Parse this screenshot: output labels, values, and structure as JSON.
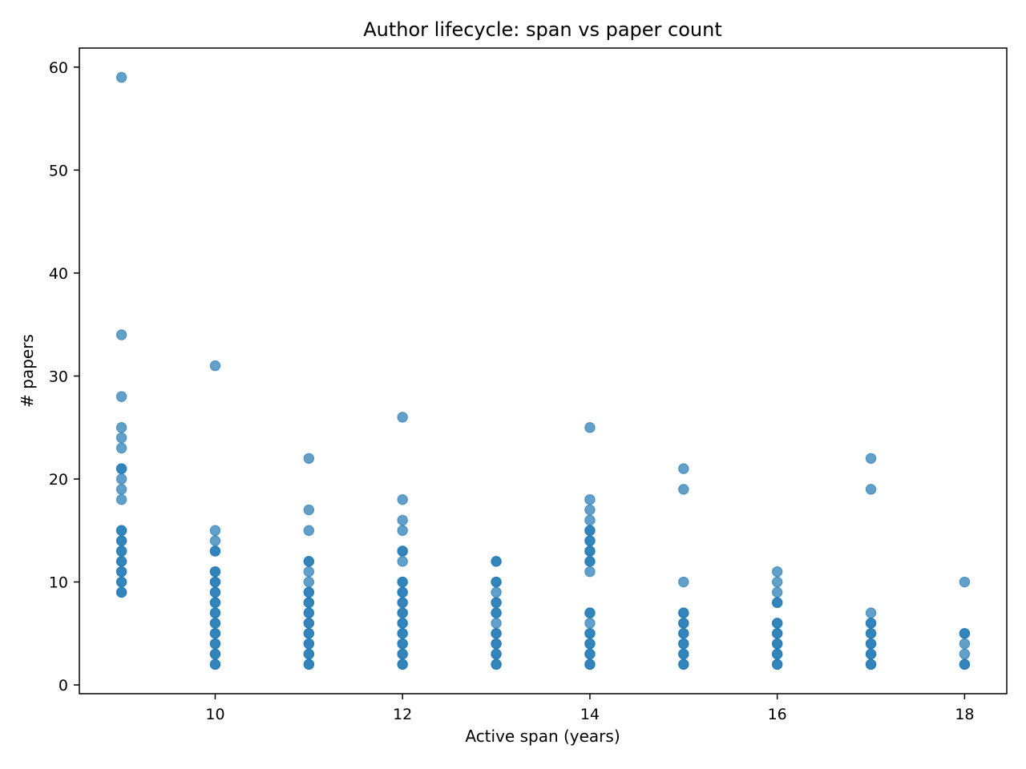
{
  "chart_data": {
    "type": "scatter",
    "title": "Author lifecycle: span vs paper count",
    "xlabel": "Active span (years)",
    "ylabel": "# papers",
    "xlim": [
      8.55,
      18.45
    ],
    "ylim": [
      -0.85,
      61.85
    ],
    "xticks": [
      10,
      12,
      14,
      16,
      18
    ],
    "yticks": [
      0,
      10,
      20,
      30,
      40,
      50,
      60
    ],
    "grid": false,
    "legend": false,
    "marker_color": "#1f77b4",
    "marker_alpha": 0.7,
    "series": [
      {
        "points": [
          {
            "x": 9,
            "y": 59
          },
          {
            "x": 9,
            "y": 34
          },
          {
            "x": 9,
            "y": 28
          },
          {
            "x": 9,
            "y": 25
          },
          {
            "x": 9,
            "y": 24
          },
          {
            "x": 9,
            "y": 23
          },
          {
            "x": 9,
            "y": 21
          },
          {
            "x": 9,
            "y": 21
          },
          {
            "x": 9,
            "y": 20
          },
          {
            "x": 9,
            "y": 19
          },
          {
            "x": 9,
            "y": 18
          },
          {
            "x": 9,
            "y": 15
          },
          {
            "x": 9,
            "y": 15
          },
          {
            "x": 9,
            "y": 14
          },
          {
            "x": 9,
            "y": 14
          },
          {
            "x": 9,
            "y": 13
          },
          {
            "x": 9,
            "y": 13
          },
          {
            "x": 9,
            "y": 12
          },
          {
            "x": 9,
            "y": 12
          },
          {
            "x": 9,
            "y": 11
          },
          {
            "x": 9,
            "y": 11
          },
          {
            "x": 9,
            "y": 10
          },
          {
            "x": 9,
            "y": 10
          },
          {
            "x": 9,
            "y": 9
          },
          {
            "x": 9,
            "y": 9
          },
          {
            "x": 10,
            "y": 31
          },
          {
            "x": 10,
            "y": 15
          },
          {
            "x": 10,
            "y": 14
          },
          {
            "x": 10,
            "y": 13
          },
          {
            "x": 10,
            "y": 13
          },
          {
            "x": 10,
            "y": 11
          },
          {
            "x": 10,
            "y": 11
          },
          {
            "x": 10,
            "y": 10
          },
          {
            "x": 10,
            "y": 10
          },
          {
            "x": 10,
            "y": 9
          },
          {
            "x": 10,
            "y": 9
          },
          {
            "x": 10,
            "y": 8
          },
          {
            "x": 10,
            "y": 8
          },
          {
            "x": 10,
            "y": 7
          },
          {
            "x": 10,
            "y": 7
          },
          {
            "x": 10,
            "y": 6
          },
          {
            "x": 10,
            "y": 6
          },
          {
            "x": 10,
            "y": 5
          },
          {
            "x": 10,
            "y": 5
          },
          {
            "x": 10,
            "y": 4
          },
          {
            "x": 10,
            "y": 4
          },
          {
            "x": 10,
            "y": 3
          },
          {
            "x": 10,
            "y": 3
          },
          {
            "x": 10,
            "y": 2
          },
          {
            "x": 10,
            "y": 2
          },
          {
            "x": 11,
            "y": 22
          },
          {
            "x": 11,
            "y": 17
          },
          {
            "x": 11,
            "y": 15
          },
          {
            "x": 11,
            "y": 12
          },
          {
            "x": 11,
            "y": 12
          },
          {
            "x": 11,
            "y": 11
          },
          {
            "x": 11,
            "y": 10
          },
          {
            "x": 11,
            "y": 9
          },
          {
            "x": 11,
            "y": 9
          },
          {
            "x": 11,
            "y": 8
          },
          {
            "x": 11,
            "y": 8
          },
          {
            "x": 11,
            "y": 7
          },
          {
            "x": 11,
            "y": 7
          },
          {
            "x": 11,
            "y": 6
          },
          {
            "x": 11,
            "y": 6
          },
          {
            "x": 11,
            "y": 5
          },
          {
            "x": 11,
            "y": 5
          },
          {
            "x": 11,
            "y": 4
          },
          {
            "x": 11,
            "y": 4
          },
          {
            "x": 11,
            "y": 3
          },
          {
            "x": 11,
            "y": 3
          },
          {
            "x": 11,
            "y": 2
          },
          {
            "x": 11,
            "y": 2
          },
          {
            "x": 12,
            "y": 26
          },
          {
            "x": 12,
            "y": 18
          },
          {
            "x": 12,
            "y": 16
          },
          {
            "x": 12,
            "y": 15
          },
          {
            "x": 12,
            "y": 13
          },
          {
            "x": 12,
            "y": 13
          },
          {
            "x": 12,
            "y": 12
          },
          {
            "x": 12,
            "y": 10
          },
          {
            "x": 12,
            "y": 10
          },
          {
            "x": 12,
            "y": 9
          },
          {
            "x": 12,
            "y": 9
          },
          {
            "x": 12,
            "y": 8
          },
          {
            "x": 12,
            "y": 8
          },
          {
            "x": 12,
            "y": 7
          },
          {
            "x": 12,
            "y": 7
          },
          {
            "x": 12,
            "y": 6
          },
          {
            "x": 12,
            "y": 6
          },
          {
            "x": 12,
            "y": 5
          },
          {
            "x": 12,
            "y": 5
          },
          {
            "x": 12,
            "y": 4
          },
          {
            "x": 12,
            "y": 4
          },
          {
            "x": 12,
            "y": 3
          },
          {
            "x": 12,
            "y": 3
          },
          {
            "x": 12,
            "y": 2
          },
          {
            "x": 12,
            "y": 2
          },
          {
            "x": 13,
            "y": 12
          },
          {
            "x": 13,
            "y": 12
          },
          {
            "x": 13,
            "y": 10
          },
          {
            "x": 13,
            "y": 10
          },
          {
            "x": 13,
            "y": 9
          },
          {
            "x": 13,
            "y": 8
          },
          {
            "x": 13,
            "y": 8
          },
          {
            "x": 13,
            "y": 7
          },
          {
            "x": 13,
            "y": 7
          },
          {
            "x": 13,
            "y": 6
          },
          {
            "x": 13,
            "y": 5
          },
          {
            "x": 13,
            "y": 5
          },
          {
            "x": 13,
            "y": 4
          },
          {
            "x": 13,
            "y": 4
          },
          {
            "x": 13,
            "y": 3
          },
          {
            "x": 13,
            "y": 3
          },
          {
            "x": 13,
            "y": 2
          },
          {
            "x": 13,
            "y": 2
          },
          {
            "x": 14,
            "y": 25
          },
          {
            "x": 14,
            "y": 18
          },
          {
            "x": 14,
            "y": 17
          },
          {
            "x": 14,
            "y": 16
          },
          {
            "x": 14,
            "y": 15
          },
          {
            "x": 14,
            "y": 15
          },
          {
            "x": 14,
            "y": 14
          },
          {
            "x": 14,
            "y": 14
          },
          {
            "x": 14,
            "y": 13
          },
          {
            "x": 14,
            "y": 13
          },
          {
            "x": 14,
            "y": 12
          },
          {
            "x": 14,
            "y": 12
          },
          {
            "x": 14,
            "y": 11
          },
          {
            "x": 14,
            "y": 7
          },
          {
            "x": 14,
            "y": 7
          },
          {
            "x": 14,
            "y": 6
          },
          {
            "x": 14,
            "y": 5
          },
          {
            "x": 14,
            "y": 5
          },
          {
            "x": 14,
            "y": 4
          },
          {
            "x": 14,
            "y": 4
          },
          {
            "x": 14,
            "y": 3
          },
          {
            "x": 14,
            "y": 3
          },
          {
            "x": 14,
            "y": 2
          },
          {
            "x": 14,
            "y": 2
          },
          {
            "x": 15,
            "y": 21
          },
          {
            "x": 15,
            "y": 19
          },
          {
            "x": 15,
            "y": 10
          },
          {
            "x": 15,
            "y": 7
          },
          {
            "x": 15,
            "y": 7
          },
          {
            "x": 15,
            "y": 6
          },
          {
            "x": 15,
            "y": 6
          },
          {
            "x": 15,
            "y": 5
          },
          {
            "x": 15,
            "y": 5
          },
          {
            "x": 15,
            "y": 4
          },
          {
            "x": 15,
            "y": 4
          },
          {
            "x": 15,
            "y": 3
          },
          {
            "x": 15,
            "y": 3
          },
          {
            "x": 15,
            "y": 2
          },
          {
            "x": 15,
            "y": 2
          },
          {
            "x": 16,
            "y": 11
          },
          {
            "x": 16,
            "y": 10
          },
          {
            "x": 16,
            "y": 9
          },
          {
            "x": 16,
            "y": 8
          },
          {
            "x": 16,
            "y": 8
          },
          {
            "x": 16,
            "y": 6
          },
          {
            "x": 16,
            "y": 6
          },
          {
            "x": 16,
            "y": 5
          },
          {
            "x": 16,
            "y": 5
          },
          {
            "x": 16,
            "y": 4
          },
          {
            "x": 16,
            "y": 4
          },
          {
            "x": 16,
            "y": 3
          },
          {
            "x": 16,
            "y": 3
          },
          {
            "x": 16,
            "y": 2
          },
          {
            "x": 16,
            "y": 2
          },
          {
            "x": 17,
            "y": 22
          },
          {
            "x": 17,
            "y": 19
          },
          {
            "x": 17,
            "y": 7
          },
          {
            "x": 17,
            "y": 6
          },
          {
            "x": 17,
            "y": 6
          },
          {
            "x": 17,
            "y": 5
          },
          {
            "x": 17,
            "y": 5
          },
          {
            "x": 17,
            "y": 4
          },
          {
            "x": 17,
            "y": 4
          },
          {
            "x": 17,
            "y": 3
          },
          {
            "x": 17,
            "y": 3
          },
          {
            "x": 17,
            "y": 2
          },
          {
            "x": 17,
            "y": 2
          },
          {
            "x": 18,
            "y": 10
          },
          {
            "x": 18,
            "y": 5
          },
          {
            "x": 18,
            "y": 5
          },
          {
            "x": 18,
            "y": 4
          },
          {
            "x": 18,
            "y": 3
          },
          {
            "x": 18,
            "y": 2
          },
          {
            "x": 18,
            "y": 2
          }
        ]
      }
    ]
  }
}
